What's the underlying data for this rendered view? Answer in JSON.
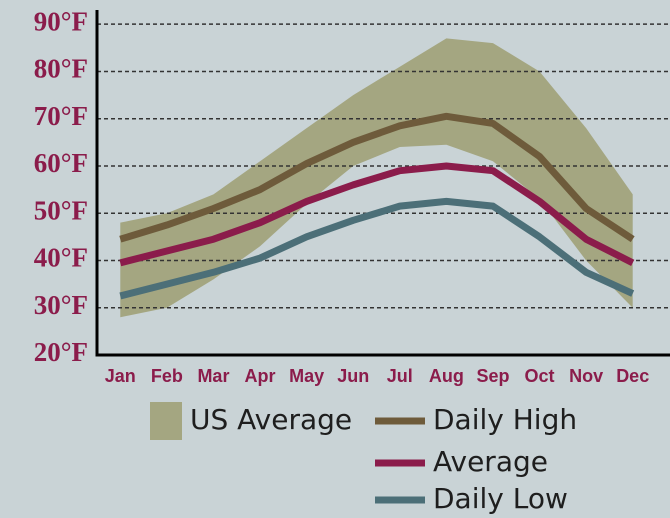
{
  "chart_data": {
    "type": "line",
    "categories": [
      "Jan",
      "Feb",
      "Mar",
      "Apr",
      "May",
      "Jun",
      "Jul",
      "Aug",
      "Sep",
      "Oct",
      "Nov",
      "Dec"
    ],
    "band": {
      "name": "US Average",
      "color": "#a4a681",
      "low": [
        28,
        30,
        36,
        43,
        52,
        60,
        64,
        64.5,
        61,
        53,
        40,
        30
      ],
      "high": [
        48,
        50,
        54,
        61,
        68,
        75,
        81,
        87,
        86,
        80,
        68,
        54
      ]
    },
    "series": [
      {
        "name": "Daily High",
        "color": "#6e5b3b",
        "values": [
          44.5,
          47.5,
          51,
          55,
          60.5,
          65,
          68.5,
          70.5,
          69,
          62,
          51,
          44.5
        ]
      },
      {
        "name": "Average",
        "color": "#8b1c4b",
        "values": [
          39.5,
          42,
          44.5,
          48,
          52.5,
          56,
          59,
          60,
          59,
          52.5,
          44.5,
          39.5
        ]
      },
      {
        "name": "Daily Low",
        "color": "#4c6f78",
        "values": [
          32.5,
          35,
          37.5,
          40.5,
          45,
          48.5,
          51.5,
          52.5,
          51.5,
          45,
          37.5,
          33
        ]
      }
    ],
    "ylim": [
      20,
      93
    ],
    "yticks": [
      {
        "value": 20,
        "label": "20°F"
      },
      {
        "value": 30,
        "label": "30°F"
      },
      {
        "value": 40,
        "label": "40°F"
      },
      {
        "value": 50,
        "label": "50°F"
      },
      {
        "value": 60,
        "label": "60°F"
      },
      {
        "value": 70,
        "label": "70°F"
      },
      {
        "value": 80,
        "label": "80°F"
      },
      {
        "value": 90,
        "label": "90°F"
      }
    ],
    "grid": true
  }
}
